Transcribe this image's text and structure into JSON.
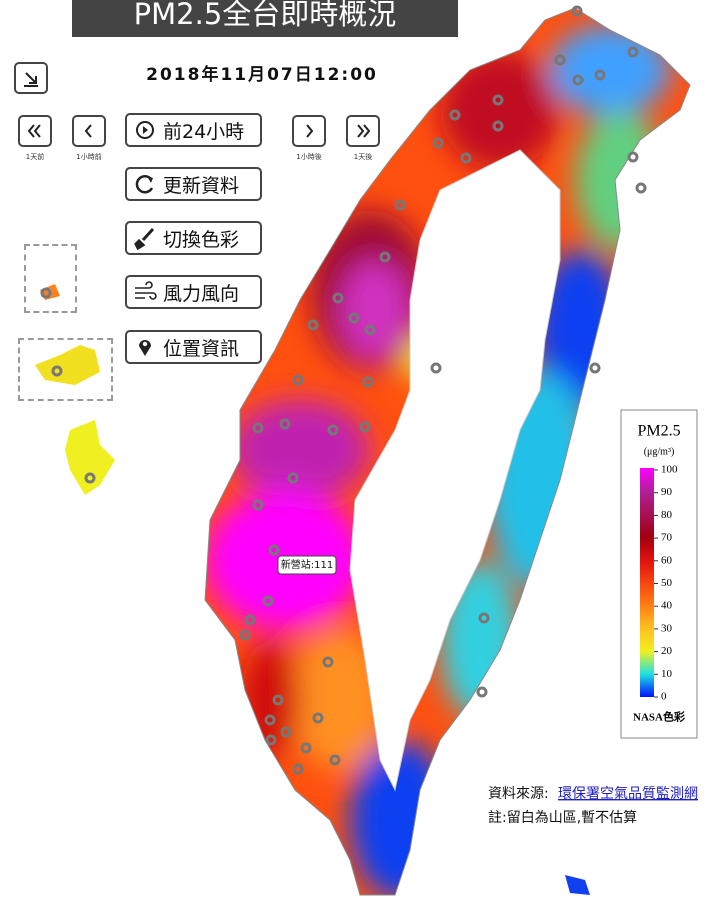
{
  "header": {
    "title": "PM2.5全台即時概況",
    "datetime": "2018年11月07日12:00"
  },
  "nav": {
    "labels": [
      "1天前",
      "1小時前",
      "1小時後",
      "1天後"
    ]
  },
  "buttons": [
    "前24小時",
    "更新資料",
    "切換色彩",
    "風力風向",
    "位置資訊"
  ],
  "map": {
    "station_label": "新營站:111"
  },
  "legend": {
    "title": "PM2.5",
    "unit": "(μg/m³)",
    "ticks": [
      100,
      90,
      80,
      70,
      60,
      50,
      40,
      30,
      20,
      10,
      0
    ],
    "caption": "NASA色彩"
  },
  "footer": {
    "source_prefix": "資料來源:",
    "source_link": "環保署空氣品質監測網",
    "note": "註:留白為山區,暫不估算"
  }
}
